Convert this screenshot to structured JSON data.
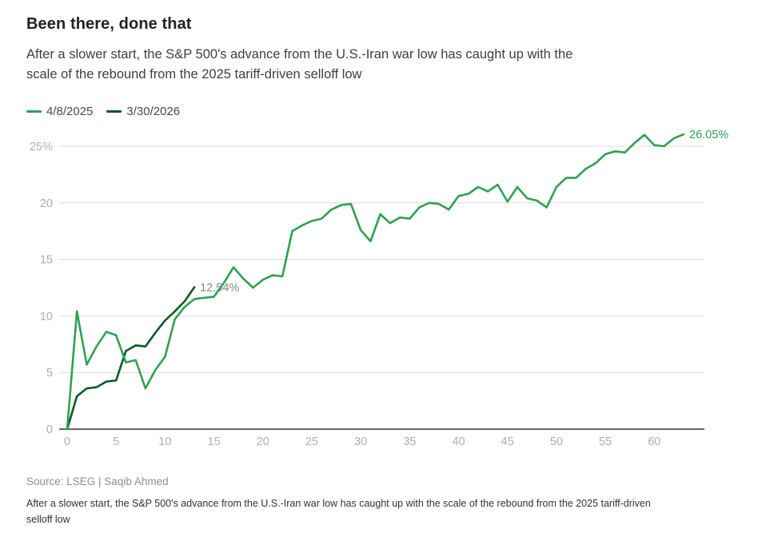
{
  "header": {
    "title": "Been there, done that",
    "subtitle_lines": [
      "After a slower start, the S&P 500's advance from the U.S.-Iran war low has caught up with the",
      "scale of the rebound from the 2025 tariff-driven selloff low"
    ]
  },
  "footer": {
    "source": "Source: LSEG | Saqib Ahmed",
    "caption_lines": [
      "After a slower start, the S&P 500's advance from the U.S.-Iran war low has caught up with the scale of the rebound from the 2025 tariff-driven",
      "selloff low"
    ]
  },
  "colors": {
    "light_green": "#2ea152",
    "dark_green": "#0d5a24",
    "gridline": "#dcdcdc",
    "zero_axis": "#666666",
    "tick_label": "#aeaeae"
  },
  "chart_data": {
    "type": "line",
    "title": "Been there, done that",
    "xlabel": "",
    "ylabel": "",
    "xlim": [
      0,
      63
    ],
    "ylim": [
      0,
      26.5
    ],
    "grid": "horizontal-only",
    "legend_position": "top-left",
    "x_ticks": [
      0,
      5,
      10,
      15,
      20,
      25,
      30,
      35,
      40,
      45,
      50,
      55,
      60
    ],
    "y_ticks": [
      {
        "value": 0,
        "label": "0"
      },
      {
        "value": 5,
        "label": "5"
      },
      {
        "value": 10,
        "label": "10"
      },
      {
        "value": 15,
        "label": "15"
      },
      {
        "value": 20,
        "label": "20"
      },
      {
        "value": 25,
        "label": "25%"
      }
    ],
    "series": [
      {
        "name": "4/8/2025",
        "color": "#2ea152",
        "end_label": "26.05%",
        "end_label_color": "#2ea152",
        "x_start": 0,
        "x_step": 1,
        "values": [
          0,
          10.4,
          5.7,
          7.3,
          8.6,
          8.3,
          5.9,
          6.1,
          3.6,
          5.2,
          6.4,
          9.7,
          10.8,
          11.5,
          11.6,
          11.7,
          12.9,
          14.3,
          13.3,
          12.5,
          13.2,
          13.6,
          13.5,
          17.5,
          18.0,
          18.4,
          18.6,
          19.4,
          19.8,
          19.9,
          17.6,
          16.6,
          19.0,
          18.2,
          18.7,
          18.6,
          19.6,
          20.0,
          19.9,
          19.4,
          20.6,
          20.8,
          21.4,
          21.0,
          21.6,
          20.1,
          21.4,
          20.4,
          20.2,
          19.6,
          21.4,
          22.2,
          22.2,
          23.0,
          23.5,
          24.3,
          24.55,
          24.45,
          25.3,
          26.0,
          25.1,
          25.0,
          25.7,
          26.05
        ]
      },
      {
        "name": "3/30/2026",
        "color": "#0d5a24",
        "end_label": "12.54%",
        "end_label_color": "#74907c",
        "x_start": 0,
        "x_step": 1,
        "values": [
          0,
          2.9,
          3.6,
          3.7,
          4.2,
          4.3,
          6.9,
          7.4,
          7.3,
          8.5,
          9.6,
          10.4,
          11.3,
          12.54
        ]
      }
    ]
  }
}
